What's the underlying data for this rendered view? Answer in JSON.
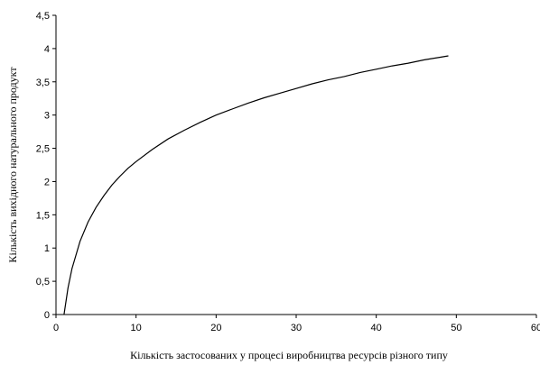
{
  "chart_data": {
    "type": "line",
    "title": "",
    "xlabel": "Кількість застосованих у процесі виробництва ресурсів різного типу",
    "ylabel": "Кількість вихідного натурального продукт",
    "xlim": [
      0,
      60
    ],
    "ylim": [
      0,
      4.5
    ],
    "x_ticks": [
      "0",
      "10",
      "20",
      "30",
      "40",
      "50",
      "60"
    ],
    "y_ticks": [
      "0",
      "0,5",
      "1",
      "1,5",
      "2",
      "2,5",
      "3",
      "3,5",
      "4",
      "4,5"
    ],
    "grid": false,
    "legend": "none",
    "line_color": "#000000",
    "series": [
      {
        "x": [
          1,
          1.5,
          2,
          3,
          4,
          5,
          6,
          7,
          8,
          9,
          10,
          12,
          14,
          16,
          18,
          20,
          22,
          24,
          26,
          28,
          30,
          32,
          34,
          36,
          38,
          40,
          42,
          44,
          46,
          48,
          49
        ],
        "values": [
          0,
          0.4,
          0.69,
          1.1,
          1.39,
          1.61,
          1.79,
          1.95,
          2.08,
          2.2,
          2.3,
          2.48,
          2.64,
          2.77,
          2.89,
          3.0,
          3.09,
          3.18,
          3.26,
          3.33,
          3.4,
          3.47,
          3.53,
          3.58,
          3.64,
          3.69,
          3.74,
          3.78,
          3.83,
          3.87,
          3.89
        ]
      }
    ]
  }
}
